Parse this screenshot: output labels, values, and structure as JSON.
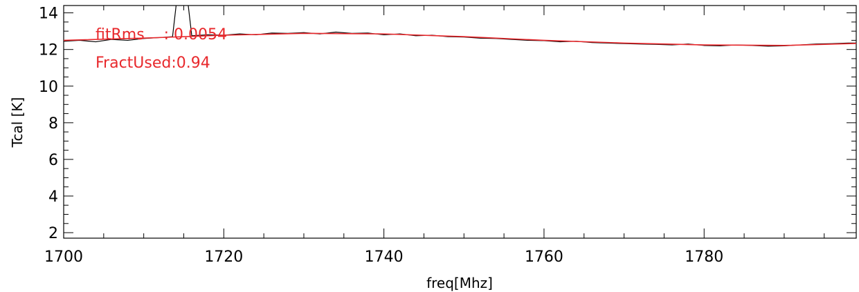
{
  "chart_data": {
    "type": "line",
    "title": "",
    "xlabel": "freq[Mhz]",
    "ylabel": "Tcal [K]",
    "xlim": [
      1700,
      1799
    ],
    "ylim": [
      1.7,
      14.4
    ],
    "x_ticks": [
      1700,
      1720,
      1740,
      1760,
      1780
    ],
    "x_tick_labels": [
      "1700",
      "1720",
      "1740",
      "1760",
      "1780"
    ],
    "y_ticks": [
      2,
      4,
      6,
      8,
      10,
      12,
      14
    ],
    "y_tick_labels": [
      "2",
      "4",
      "6",
      "8",
      "10",
      "12",
      "14"
    ],
    "grid": false,
    "legend": "none",
    "annotations": [
      "fitRms    : 0.0054",
      "FractUsed:0.94"
    ],
    "annotation_color": "#e8282c",
    "series": [
      {
        "color": "#000000",
        "x": [
          1700,
          1702,
          1704,
          1706,
          1708,
          1710,
          1712,
          1713.6,
          1714.2,
          1715.4,
          1716,
          1718,
          1720,
          1722,
          1724,
          1726,
          1728,
          1730,
          1732,
          1734,
          1736,
          1738,
          1740,
          1742,
          1744,
          1746,
          1748,
          1750,
          1752,
          1754,
          1756,
          1758,
          1760,
          1762,
          1764,
          1766,
          1768,
          1770,
          1772,
          1774,
          1776,
          1778,
          1780,
          1782,
          1784,
          1786,
          1788,
          1790,
          1792,
          1794,
          1796,
          1798,
          1799
        ],
        "y": [
          12.45,
          12.5,
          12.42,
          12.55,
          12.5,
          12.6,
          12.65,
          12.7,
          15,
          15,
          12.75,
          12.8,
          12.78,
          12.85,
          12.8,
          12.9,
          12.88,
          12.92,
          12.85,
          12.95,
          12.88,
          12.9,
          12.8,
          12.85,
          12.75,
          12.78,
          12.7,
          12.68,
          12.62,
          12.6,
          12.55,
          12.5,
          12.48,
          12.42,
          12.45,
          12.38,
          12.35,
          12.32,
          12.3,
          12.28,
          12.25,
          12.3,
          12.22,
          12.2,
          12.25,
          12.22,
          12.18,
          12.2,
          12.25,
          12.3,
          12.32,
          12.35,
          12.35
        ]
      },
      {
        "color": "#e8282c",
        "x": [
          1700,
          1710,
          1720,
          1730,
          1740,
          1750,
          1760,
          1770,
          1780,
          1790,
          1799
        ],
        "y": [
          12.5,
          12.62,
          12.78,
          12.88,
          12.85,
          12.7,
          12.5,
          12.35,
          12.25,
          12.22,
          12.33
        ]
      }
    ]
  }
}
